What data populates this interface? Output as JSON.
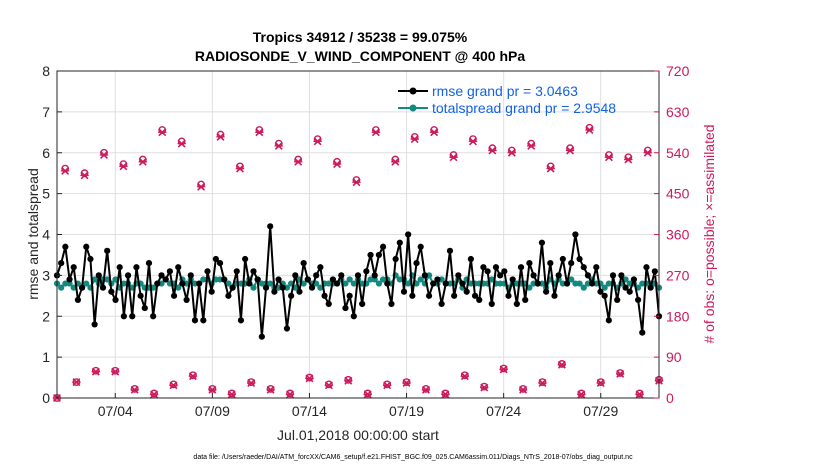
{
  "chart_data": {
    "type": "line",
    "title": "Tropics 34912 / 35238 = 99.075%",
    "subtitle": "RADIOSONDE_V_WIND_COMPONENT @ 400 hPa",
    "xlabel": "Jul.01,2018 00:00:00 start",
    "ylabel": "rmse and totalspread",
    "ylabel_right": "# of obs: o=possible; ×=assimilated",
    "footer": "data file: /Users/raeder/DAI/ATM_forcXX/CAM6_setup/f.e21.FHIST_BGC.f09_025.CAM6assim.011/Diags_NTrS_2018-07/obs_diag_output.nc",
    "xlim": [
      1,
      32
    ],
    "ylim": [
      0,
      8
    ],
    "ylim_right": [
      0,
      720
    ],
    "x_ticks": [
      4,
      9,
      14,
      19,
      24,
      29
    ],
    "x_tick_labels": [
      "07/04",
      "07/09",
      "07/14",
      "07/19",
      "07/24",
      "07/29"
    ],
    "y_ticks": [
      0,
      1,
      2,
      3,
      4,
      5,
      6,
      7,
      8
    ],
    "y_ticks_right": [
      0,
      90,
      180,
      270,
      360,
      450,
      540,
      630,
      720
    ],
    "colors": {
      "rmse": "#000000",
      "spread": "#138a80",
      "obs": "#cc1a5c",
      "legend_text": "#1462e0"
    },
    "series": [
      {
        "name": "rmse grand pr = 3.0463",
        "values": [
          3.0,
          3.3,
          3.7,
          2.9,
          3.2,
          2.4,
          2.7,
          3.7,
          3.4,
          1.8,
          3.0,
          2.7,
          3.6,
          2.6,
          2.4,
          3.2,
          2.0,
          3.0,
          2.0,
          3.2,
          2.5,
          2.2,
          3.3,
          2.0,
          2.8,
          3.0,
          2.9,
          3.1,
          2.5,
          3.2,
          2.8,
          2.4,
          3.0,
          1.9,
          2.8,
          1.9,
          3.1,
          2.6,
          3.4,
          3.3,
          2.9,
          2.5,
          2.7,
          3.1,
          1.9,
          3.4,
          2.8,
          3.1,
          2.9,
          1.5,
          2.7,
          4.2,
          2.6,
          2.9,
          2.7,
          1.7,
          2.5,
          3.0,
          2.6,
          3.3,
          2.9,
          2.7,
          3.0,
          3.2,
          2.5,
          2.3,
          2.9,
          2.8,
          3.0,
          2.2,
          2.5,
          2.0,
          3.0,
          2.3,
          3.1,
          3.5,
          3.0,
          3.5,
          3.7,
          2.8,
          2.3,
          3.4,
          3.8,
          2.6,
          4.0,
          2.5,
          3.3,
          3.7,
          3.0,
          2.5,
          2.8,
          2.9,
          2.3,
          2.8,
          3.6,
          2.5,
          3.0,
          2.8,
          2.6,
          3.4,
          2.5,
          2.4,
          3.2,
          3.1,
          2.3,
          3.2,
          3.0,
          3.1,
          2.5,
          2.9,
          2.3,
          3.2,
          2.4,
          3.3,
          3.0,
          2.8,
          3.8,
          2.6,
          3.3,
          2.5,
          3.0,
          3.4,
          2.8,
          3.3,
          4.0,
          3.4,
          3.2,
          3.0,
          2.8,
          3.2,
          2.6,
          2.5,
          1.9,
          3.0,
          2.4,
          3.0,
          2.7,
          2.6,
          2.9,
          2.4,
          1.6,
          3.2,
          2.7,
          3.1,
          2.0
        ]
      },
      {
        "name": "totalspread grand pr = 2.9548",
        "values": [
          2.8,
          2.7,
          2.8,
          2.8,
          2.7,
          2.8,
          2.7,
          2.8,
          2.7,
          2.9,
          2.8,
          2.9,
          2.9,
          2.8,
          2.9,
          2.7,
          2.8,
          2.8,
          2.7,
          2.8,
          2.8,
          2.7,
          2.7,
          2.7,
          2.8,
          2.8,
          2.9,
          2.8,
          2.8,
          2.7,
          2.9,
          2.8,
          2.9,
          2.8,
          2.8,
          2.9,
          2.9,
          2.8,
          2.9,
          2.9,
          2.9,
          2.8,
          2.7,
          2.8,
          2.8,
          2.8,
          2.9,
          2.7,
          2.9,
          2.8,
          2.8,
          2.8,
          2.7,
          2.7,
          2.8,
          2.7,
          2.8,
          2.7,
          2.9,
          2.8,
          2.9,
          2.8,
          2.8,
          2.7,
          2.8,
          2.8,
          2.8,
          2.8,
          2.9,
          2.8,
          2.9,
          2.8,
          2.9,
          2.8,
          2.8,
          2.9,
          2.9,
          2.8,
          2.9,
          2.9,
          2.8,
          3.0,
          2.9,
          2.9,
          2.8,
          3.0,
          2.8,
          2.9,
          2.8,
          3.0,
          2.8,
          2.8,
          2.9,
          2.8,
          2.8,
          2.8,
          2.9,
          2.7,
          2.9,
          2.8,
          2.8,
          2.8,
          2.8,
          2.8,
          2.9,
          2.8,
          2.8,
          2.8,
          2.7,
          2.8,
          2.8,
          2.8,
          2.8,
          2.7,
          2.8,
          2.8,
          2.8,
          2.7,
          2.9,
          2.8,
          2.9,
          2.8,
          2.8,
          2.9,
          2.8,
          2.8,
          2.7,
          2.8,
          2.9,
          2.8,
          2.8,
          2.7,
          2.8,
          2.8,
          2.7,
          2.8,
          2.9,
          2.8,
          2.8,
          2.7,
          2.8,
          2.8,
          2.8,
          2.8,
          2.7
        ]
      }
    ],
    "obs_x": [
      1.0,
      1.42,
      2.0,
      2.42,
      3.0,
      3.42,
      4.0,
      4.42,
      5.0,
      5.42,
      6.0,
      6.42,
      7.0,
      7.42,
      8.0,
      8.42,
      9.0,
      9.42,
      10.0,
      10.42,
      11.0,
      11.42,
      12.0,
      12.42,
      13.0,
      13.42,
      14.0,
      14.42,
      15.0,
      15.42,
      16.0,
      16.42,
      17.0,
      17.42,
      18.0,
      18.42,
      19.0,
      19.42,
      20.0,
      20.42,
      21.0,
      21.42,
      22.0,
      22.42,
      23.0,
      23.42,
      24.0,
      24.42,
      25.0,
      25.42,
      26.0,
      26.42,
      27.0,
      27.42,
      28.0,
      28.42,
      29.0,
      29.42,
      30.0,
      30.42,
      31.0,
      31.42,
      32.0
    ],
    "obs_possible": [
      0,
      505,
      35,
      495,
      60,
      540,
      60,
      515,
      20,
      525,
      10,
      590,
      30,
      565,
      50,
      470,
      20,
      580,
      10,
      510,
      35,
      590,
      20,
      560,
      10,
      525,
      45,
      570,
      30,
      520,
      40,
      480,
      10,
      590,
      30,
      525,
      35,
      575,
      20,
      590,
      10,
      535,
      50,
      570,
      25,
      550,
      65,
      545,
      20,
      560,
      35,
      510,
      75,
      550,
      10,
      595,
      35,
      535,
      55,
      530,
      10,
      545,
      40
    ],
    "obs_assimilated": [
      0,
      500,
      35,
      490,
      58,
      535,
      58,
      510,
      18,
      520,
      8,
      585,
      28,
      560,
      48,
      465,
      18,
      575,
      8,
      505,
      33,
      585,
      18,
      555,
      8,
      520,
      43,
      565,
      28,
      515,
      38,
      475,
      8,
      585,
      28,
      520,
      33,
      570,
      18,
      585,
      8,
      530,
      48,
      565,
      23,
      545,
      63,
      540,
      18,
      555,
      33,
      505,
      73,
      545,
      8,
      590,
      33,
      530,
      53,
      525,
      8,
      540,
      38
    ]
  }
}
